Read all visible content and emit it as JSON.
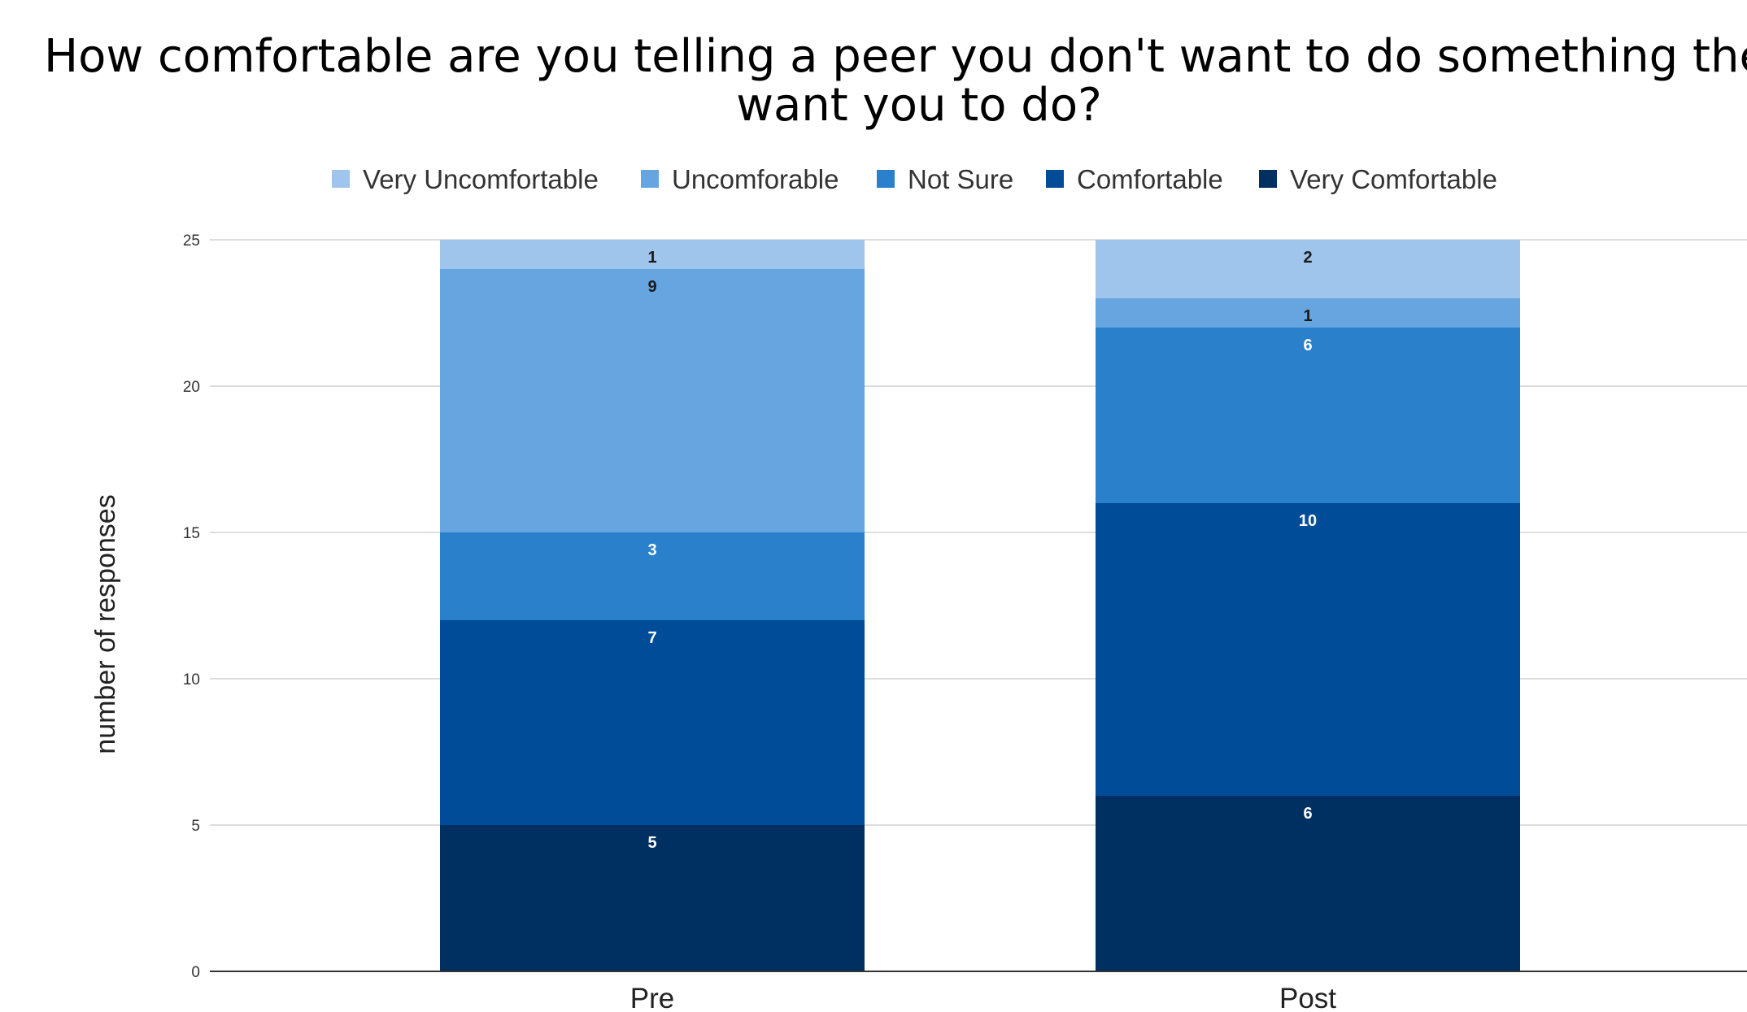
{
  "chart_data": {
    "type": "bar",
    "stacked": true,
    "title": "How comfortable are you telling a peer you don't want to do something they want you to do?",
    "title_lines": [
      "How comfortable are you telling a peer you don't want to do something they",
      "want you to do?"
    ],
    "xlabel": "",
    "ylabel": "number of responses",
    "categories": [
      "Pre",
      "Post"
    ],
    "ylim": [
      0,
      25
    ],
    "yticks": [
      0,
      5,
      10,
      15,
      20,
      25
    ],
    "grid": true,
    "legend_position": "top",
    "series": [
      {
        "name": "Very Comfortable",
        "color": "#002f62",
        "label_color": "#ffffff",
        "values": [
          5,
          6
        ]
      },
      {
        "name": "Comfortable",
        "color": "#004c99",
        "label_color": "#ffffff",
        "values": [
          7,
          10
        ]
      },
      {
        "name": "Not Sure",
        "color": "#2b80cc",
        "label_color": "#ffffff",
        "values": [
          3,
          6
        ]
      },
      {
        "name": "Uncomforable",
        "color": "#66a5e0",
        "label_color": "#1a1a1a",
        "values": [
          9,
          1
        ]
      },
      {
        "name": "Very Uncomfortable",
        "color": "#9fc5ec",
        "label_color": "#1a1a1a",
        "values": [
          1,
          2
        ]
      }
    ],
    "legend_order": [
      "Very Uncomfortable",
      "Uncomforable",
      "Not Sure",
      "Comfortable",
      "Very Comfortable"
    ]
  }
}
